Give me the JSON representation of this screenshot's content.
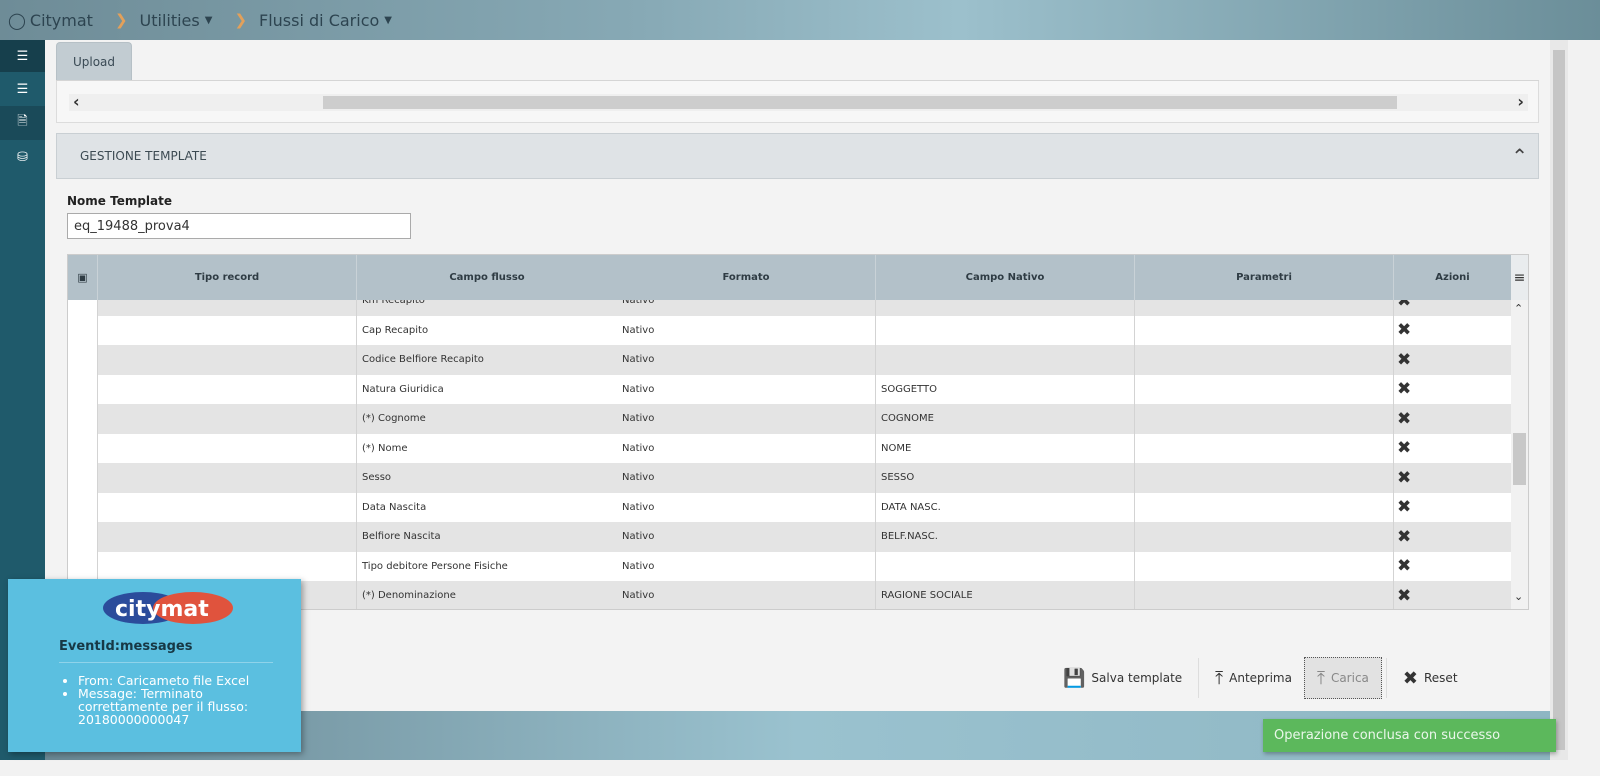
{
  "breadcrumb": {
    "home": "Citymat",
    "items": [
      "Utilities",
      "Flussi di Carico"
    ]
  },
  "tabs": [
    "Upload"
  ],
  "panel": {
    "title": "GESTIONE TEMPLATE"
  },
  "form": {
    "name_label": "Nome Template",
    "name_value": "eq_19488_prova4"
  },
  "grid": {
    "columns": [
      "Tipo record",
      "Campo flusso",
      "Formato",
      "Campo Nativo",
      "Parametri",
      "Azioni"
    ],
    "rows": [
      {
        "tipo": "",
        "campo": "Km Recapito",
        "formato": "Nativo",
        "nativo": "",
        "parametri": ""
      },
      {
        "tipo": "",
        "campo": "Cap Recapito",
        "formato": "Nativo",
        "nativo": "",
        "parametri": ""
      },
      {
        "tipo": "",
        "campo": "Codice Belfiore Recapito",
        "formato": "Nativo",
        "nativo": "",
        "parametri": ""
      },
      {
        "tipo": "",
        "campo": "Natura Giuridica",
        "formato": "Nativo",
        "nativo": "SOGGETTO",
        "parametri": ""
      },
      {
        "tipo": "",
        "campo": "(*) Cognome",
        "formato": "Nativo",
        "nativo": "COGNOME",
        "parametri": ""
      },
      {
        "tipo": "",
        "campo": "(*) Nome",
        "formato": "Nativo",
        "nativo": "NOME",
        "parametri": ""
      },
      {
        "tipo": "",
        "campo": "Sesso",
        "formato": "Nativo",
        "nativo": "SESSO",
        "parametri": ""
      },
      {
        "tipo": "",
        "campo": "Data Nascita",
        "formato": "Nativo",
        "nativo": "DATA NASC.",
        "parametri": ""
      },
      {
        "tipo": "",
        "campo": "Belfiore Nascita",
        "formato": "Nativo",
        "nativo": "BELF.NASC.",
        "parametri": ""
      },
      {
        "tipo": "",
        "campo": "Tipo debitore Persone Fisiche",
        "formato": "Nativo",
        "nativo": "",
        "parametri": ""
      },
      {
        "tipo": "",
        "campo": "(*) Denominazione",
        "formato": "Nativo",
        "nativo": "RAGIONE SOCIALE",
        "parametri": ""
      }
    ]
  },
  "actions": {
    "save": "Salva template",
    "preview": "Anteprima",
    "load": "Carica",
    "reset": "Reset"
  },
  "notification": {
    "logo": "citymat",
    "event": "EventId:messages",
    "from": "From: Caricameto file Excel",
    "message": "Message: Terminato correttamente per il flusso: 20180000000047"
  },
  "success_toast": "Operazione conclusa con successo",
  "colors": {
    "sidebar": "#1f5a6b",
    "toast": "#5bbfe0",
    "success": "#5cb85c"
  }
}
